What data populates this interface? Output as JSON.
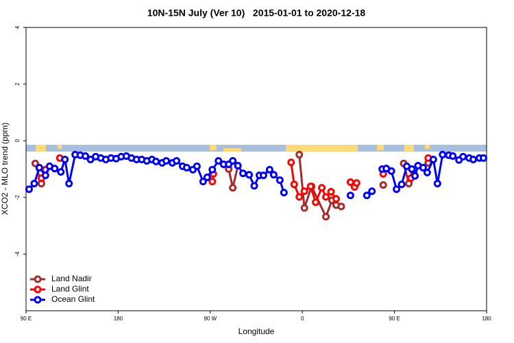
{
  "chart_data": {
    "type": "line",
    "title": "10N-15N July (Ver 10)   2015-01-01 to 2020-12-18",
    "x_label": "Longitude",
    "y_label": "XCO2 - MLO trend (ppm)",
    "xlim": [
      90,
      540
    ],
    "ylim": [
      -6,
      4
    ],
    "xticks": [
      {
        "value": 90,
        "label": "90 E"
      },
      180,
      {
        "value": 270,
        "label": "90 W"
      },
      {
        "value": 360,
        "label": "0"
      },
      {
        "value": 450,
        "label": "90 E"
      },
      {
        "value": 540,
        "label": "180"
      }
    ],
    "yticks": [
      4,
      2,
      0,
      -2,
      -4
    ],
    "legend": "bottom-left",
    "series": [
      {
        "name": "Land Nadir",
        "color": "#a52a2a",
        "x": [
          99,
          105,
          null,
          288,
          292,
          297,
          null,
          357,
          362,
          369,
          383,
          389,
          393,
          398,
          null,
          439,
          null,
          459,
          464,
          469,
          null,
          483
        ],
        "values": [
          -0.8,
          -1.51,
          null,
          -1.0,
          -1.66,
          -0.88,
          null,
          -0.49,
          -2.37,
          -1.61,
          -2.68,
          -2.1,
          -2.27,
          -2.32,
          null,
          -1.56,
          null,
          -0.8,
          -1.51,
          -1.17,
          null,
          -0.78
        ]
      },
      {
        "name": "Land Glint",
        "color": "#ff0000",
        "x": [
          105,
          109,
          null,
          123,
          null,
          272,
          273,
          null,
          349,
          352,
          357,
          362,
          368,
          373,
          379,
          383,
          388,
          393,
          null,
          407,
          411,
          413,
          null,
          439,
          null,
          466,
          null,
          483
        ],
        "values": [
          -1.32,
          -1.02,
          null,
          -0.61,
          null,
          -1.44,
          -1.17,
          null,
          -0.76,
          -1.54,
          -1.98,
          -1.78,
          -1.61,
          -2.17,
          -1.66,
          -1.98,
          -1.8,
          -2.05,
          null,
          -1.46,
          -1.63,
          -1.49,
          null,
          -1.17,
          null,
          -1.32,
          null,
          -0.61
        ]
      },
      {
        "name": "Ocean Glint",
        "color": "#0000ff",
        "x": [
          93,
          98,
          103,
          109,
          113,
          118,
          124,
          128,
          132,
          138,
          143,
          148,
          153,
          158,
          163,
          168,
          173,
          178,
          183,
          188,
          193,
          198,
          203,
          208,
          213,
          217,
          223,
          227,
          233,
          237,
          243,
          247,
          253,
          257,
          263,
          267,
          272,
          278,
          283,
          288,
          292,
          297,
          302,
          308,
          313,
          318,
          322,
          328,
          332,
          338,
          342,
          null,
          407,
          null,
          423,
          428,
          null,
          438,
          442,
          447,
          452,
          457,
          462,
          467,
          470,
          473,
          478,
          482,
          488,
          492,
          497,
          503,
          507,
          513,
          517,
          523,
          527,
          533,
          537
        ],
        "values": [
          -1.71,
          -1.51,
          -0.95,
          -1.22,
          -0.9,
          -0.98,
          -1.1,
          -0.66,
          -1.51,
          -0.49,
          -0.51,
          -0.54,
          -0.66,
          -0.56,
          -0.61,
          -0.66,
          -0.61,
          -0.63,
          -0.56,
          -0.54,
          -0.61,
          -0.66,
          -0.66,
          -0.71,
          -0.66,
          -0.73,
          -0.78,
          -0.71,
          -0.78,
          -0.71,
          -0.9,
          -0.95,
          -1.02,
          -0.9,
          -1.44,
          -1.29,
          -1.02,
          -0.71,
          -0.83,
          -0.83,
          -0.71,
          -0.88,
          -1.15,
          -1.2,
          -1.59,
          -1.22,
          -1.22,
          -1.02,
          -1.2,
          -1.39,
          -1.83,
          null,
          -1.93,
          null,
          -1.93,
          -1.78,
          null,
          -1.0,
          -0.98,
          -1.07,
          -1.71,
          -1.54,
          -0.9,
          -1.0,
          -1.24,
          -0.88,
          -0.95,
          -1.12,
          -0.66,
          -1.51,
          -0.49,
          -0.51,
          -0.54,
          -0.68,
          -0.56,
          -0.61,
          -0.66,
          -0.61,
          -0.61
        ]
      }
    ]
  }
}
